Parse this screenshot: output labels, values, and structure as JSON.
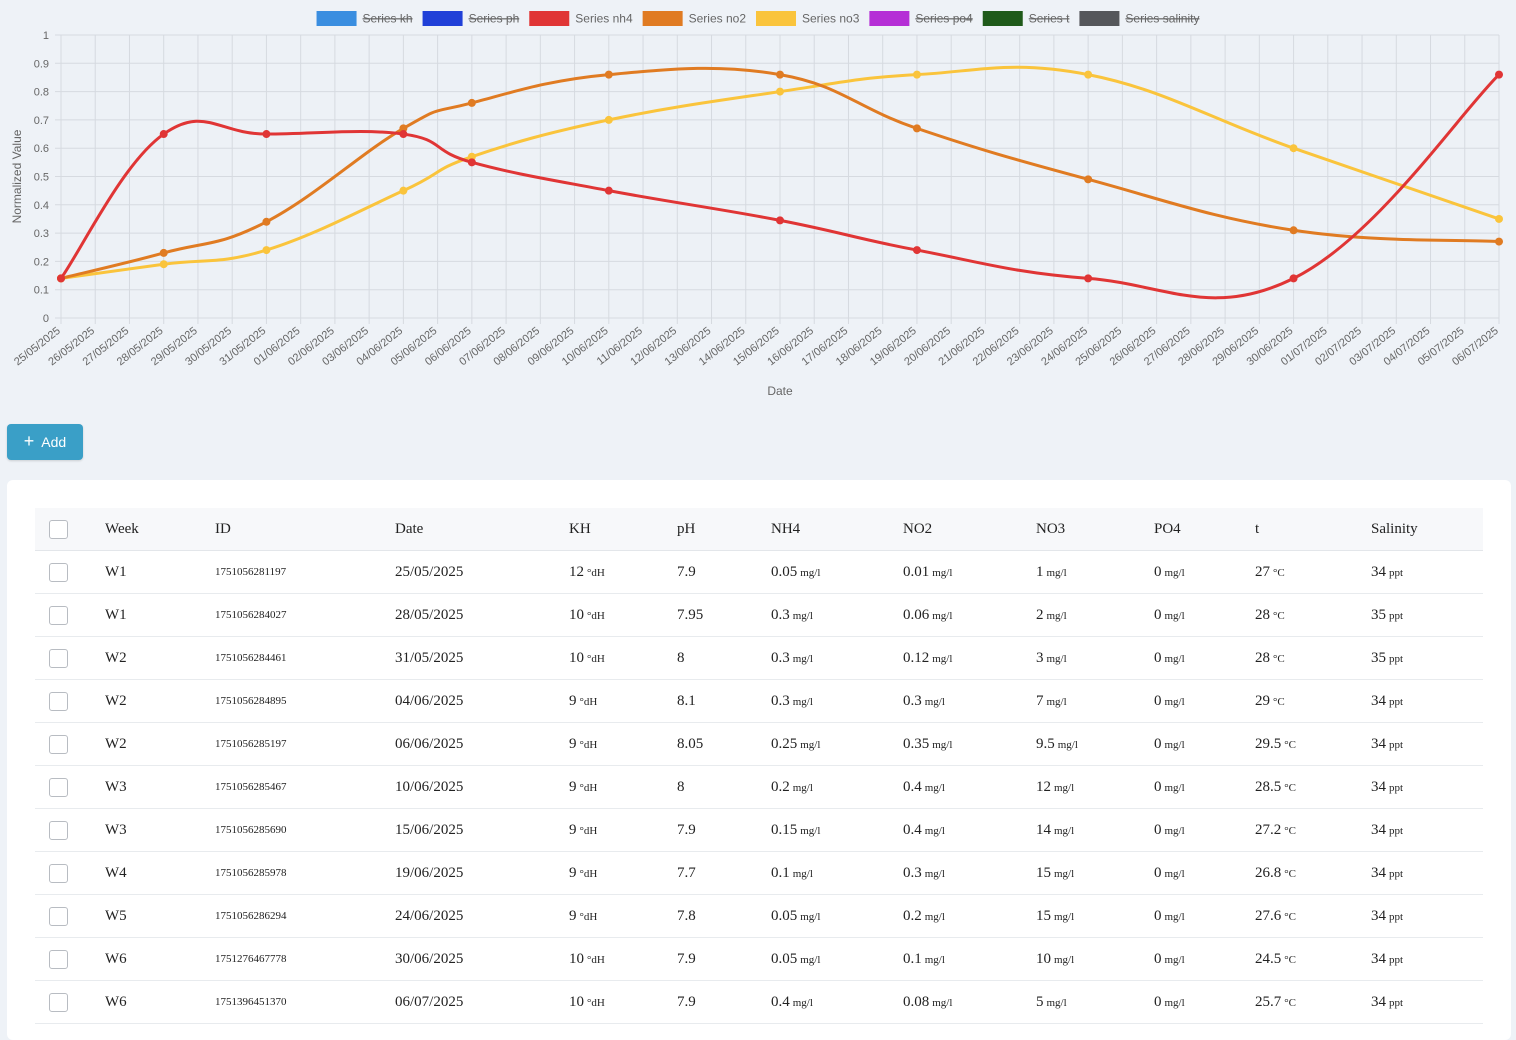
{
  "chart_data": {
    "type": "line",
    "xlabel": "Date",
    "ylabel": "Normalized Value",
    "ylim": [
      0,
      1
    ],
    "yticks": [
      "0",
      "0.1",
      "0.2",
      "0.3",
      "0.4",
      "0.5",
      "0.6",
      "0.7",
      "0.8",
      "0.9",
      "1"
    ],
    "x": [
      "25/05/2025",
      "26/05/2025",
      "27/05/2025",
      "28/05/2025",
      "29/05/2025",
      "30/05/2025",
      "31/05/2025",
      "01/06/2025",
      "02/06/2025",
      "03/06/2025",
      "04/06/2025",
      "05/06/2025",
      "06/06/2025",
      "07/06/2025",
      "08/06/2025",
      "09/06/2025",
      "10/06/2025",
      "11/06/2025",
      "12/06/2025",
      "13/06/2025",
      "14/06/2025",
      "15/06/2025",
      "16/06/2025",
      "17/06/2025",
      "18/06/2025",
      "19/06/2025",
      "20/06/2025",
      "21/06/2025",
      "22/06/2025",
      "23/06/2025",
      "24/06/2025",
      "25/06/2025",
      "26/06/2025",
      "27/06/2025",
      "28/06/2025",
      "29/06/2025",
      "30/06/2025",
      "01/07/2025",
      "02/07/2025",
      "03/07/2025",
      "04/07/2025",
      "05/07/2025",
      "06/07/2025"
    ],
    "legend_position": "top",
    "legend": [
      {
        "name": "Series kh",
        "color": "#3a8ee0",
        "hidden": true
      },
      {
        "name": "Series ph",
        "color": "#2040d8",
        "hidden": true
      },
      {
        "name": "Series nh4",
        "color": "#e03535",
        "hidden": false
      },
      {
        "name": "Series no2",
        "color": "#e07b22",
        "hidden": false
      },
      {
        "name": "Series no3",
        "color": "#fac43c",
        "hidden": false
      },
      {
        "name": "Series po4",
        "color": "#b52fd6",
        "hidden": true
      },
      {
        "name": "Series t",
        "color": "#1f5a1a",
        "hidden": true
      },
      {
        "name": "Series salinity",
        "color": "#55575b",
        "hidden": true
      }
    ],
    "series": [
      {
        "name": "Series nh4",
        "color": "#e03535",
        "points": [
          [
            "25/05/2025",
            0.14
          ],
          [
            "28/05/2025",
            0.65
          ],
          [
            "31/05/2025",
            0.65
          ],
          [
            "04/06/2025",
            0.65
          ],
          [
            "06/06/2025",
            0.55
          ],
          [
            "10/06/2025",
            0.45
          ],
          [
            "15/06/2025",
            0.345
          ],
          [
            "19/06/2025",
            0.24
          ],
          [
            "24/06/2025",
            0.14
          ],
          [
            "30/06/2025",
            0.14
          ],
          [
            "06/07/2025",
            0.86
          ]
        ]
      },
      {
        "name": "Series no2",
        "color": "#e07b22",
        "points": [
          [
            "25/05/2025",
            0.14
          ],
          [
            "28/05/2025",
            0.23
          ],
          [
            "31/05/2025",
            0.34
          ],
          [
            "04/06/2025",
            0.67
          ],
          [
            "06/06/2025",
            0.76
          ],
          [
            "10/06/2025",
            0.86
          ],
          [
            "15/06/2025",
            0.86
          ],
          [
            "19/06/2025",
            0.67
          ],
          [
            "24/06/2025",
            0.49
          ],
          [
            "30/06/2025",
            0.31
          ],
          [
            "06/07/2025",
            0.27
          ]
        ]
      },
      {
        "name": "Series no3",
        "color": "#fac43c",
        "points": [
          [
            "25/05/2025",
            0.14
          ],
          [
            "28/05/2025",
            0.19
          ],
          [
            "31/05/2025",
            0.24
          ],
          [
            "04/06/2025",
            0.45
          ],
          [
            "06/06/2025",
            0.57
          ],
          [
            "10/06/2025",
            0.7
          ],
          [
            "15/06/2025",
            0.8
          ],
          [
            "19/06/2025",
            0.86
          ],
          [
            "24/06/2025",
            0.86
          ],
          [
            "30/06/2025",
            0.6
          ],
          [
            "06/07/2025",
            0.35
          ]
        ]
      }
    ]
  },
  "toolbar": {
    "add_label": "Add"
  },
  "table": {
    "headers": [
      "Week",
      "ID",
      "Date",
      "KH",
      "pH",
      "NH4",
      "NO2",
      "NO3",
      "PO4",
      "t",
      "Salinity"
    ],
    "rows": [
      {
        "week": "W1",
        "id": "1751056281197",
        "date": "25/05/2025",
        "kh": "12",
        "kh_unit": "°dH",
        "ph": "7.9",
        "nh4": "0.05",
        "nh4_unit": "mg/l",
        "no2": "0.01",
        "no2_unit": "mg/l",
        "no3": "1",
        "no3_unit": "mg/l",
        "po4": "0",
        "po4_unit": "mg/l",
        "t": "27",
        "t_unit": "°C",
        "sal": "34",
        "sal_unit": "ppt"
      },
      {
        "week": "W1",
        "id": "1751056284027",
        "date": "28/05/2025",
        "kh": "10",
        "kh_unit": "°dH",
        "ph": "7.95",
        "nh4": "0.3",
        "nh4_unit": "mg/l",
        "no2": "0.06",
        "no2_unit": "mg/l",
        "no3": "2",
        "no3_unit": "mg/l",
        "po4": "0",
        "po4_unit": "mg/l",
        "t": "28",
        "t_unit": "°C",
        "sal": "35",
        "sal_unit": "ppt"
      },
      {
        "week": "W2",
        "id": "1751056284461",
        "date": "31/05/2025",
        "kh": "10",
        "kh_unit": "°dH",
        "ph": "8",
        "nh4": "0.3",
        "nh4_unit": "mg/l",
        "no2": "0.12",
        "no2_unit": "mg/l",
        "no3": "3",
        "no3_unit": "mg/l",
        "po4": "0",
        "po4_unit": "mg/l",
        "t": "28",
        "t_unit": "°C",
        "sal": "35",
        "sal_unit": "ppt"
      },
      {
        "week": "W2",
        "id": "1751056284895",
        "date": "04/06/2025",
        "kh": "9",
        "kh_unit": "°dH",
        "ph": "8.1",
        "nh4": "0.3",
        "nh4_unit": "mg/l",
        "no2": "0.3",
        "no2_unit": "mg/l",
        "no3": "7",
        "no3_unit": "mg/l",
        "po4": "0",
        "po4_unit": "mg/l",
        "t": "29",
        "t_unit": "°C",
        "sal": "34",
        "sal_unit": "ppt"
      },
      {
        "week": "W2",
        "id": "1751056285197",
        "date": "06/06/2025",
        "kh": "9",
        "kh_unit": "°dH",
        "ph": "8.05",
        "nh4": "0.25",
        "nh4_unit": "mg/l",
        "no2": "0.35",
        "no2_unit": "mg/l",
        "no3": "9.5",
        "no3_unit": "mg/l",
        "po4": "0",
        "po4_unit": "mg/l",
        "t": "29.5",
        "t_unit": "°C",
        "sal": "34",
        "sal_unit": "ppt"
      },
      {
        "week": "W3",
        "id": "1751056285467",
        "date": "10/06/2025",
        "kh": "9",
        "kh_unit": "°dH",
        "ph": "8",
        "nh4": "0.2",
        "nh4_unit": "mg/l",
        "no2": "0.4",
        "no2_unit": "mg/l",
        "no3": "12",
        "no3_unit": "mg/l",
        "po4": "0",
        "po4_unit": "mg/l",
        "t": "28.5",
        "t_unit": "°C",
        "sal": "34",
        "sal_unit": "ppt"
      },
      {
        "week": "W3",
        "id": "1751056285690",
        "date": "15/06/2025",
        "kh": "9",
        "kh_unit": "°dH",
        "ph": "7.9",
        "nh4": "0.15",
        "nh4_unit": "mg/l",
        "no2": "0.4",
        "no2_unit": "mg/l",
        "no3": "14",
        "no3_unit": "mg/l",
        "po4": "0",
        "po4_unit": "mg/l",
        "t": "27.2",
        "t_unit": "°C",
        "sal": "34",
        "sal_unit": "ppt"
      },
      {
        "week": "W4",
        "id": "1751056285978",
        "date": "19/06/2025",
        "kh": "9",
        "kh_unit": "°dH",
        "ph": "7.7",
        "nh4": "0.1",
        "nh4_unit": "mg/l",
        "no2": "0.3",
        "no2_unit": "mg/l",
        "no3": "15",
        "no3_unit": "mg/l",
        "po4": "0",
        "po4_unit": "mg/l",
        "t": "26.8",
        "t_unit": "°C",
        "sal": "34",
        "sal_unit": "ppt"
      },
      {
        "week": "W5",
        "id": "1751056286294",
        "date": "24/06/2025",
        "kh": "9",
        "kh_unit": "°dH",
        "ph": "7.8",
        "nh4": "0.05",
        "nh4_unit": "mg/l",
        "no2": "0.2",
        "no2_unit": "mg/l",
        "no3": "15",
        "no3_unit": "mg/l",
        "po4": "0",
        "po4_unit": "mg/l",
        "t": "27.6",
        "t_unit": "°C",
        "sal": "34",
        "sal_unit": "ppt"
      },
      {
        "week": "W6",
        "id": "1751276467778",
        "date": "30/06/2025",
        "kh": "10",
        "kh_unit": "°dH",
        "ph": "7.9",
        "nh4": "0.05",
        "nh4_unit": "mg/l",
        "no2": "0.1",
        "no2_unit": "mg/l",
        "no3": "10",
        "no3_unit": "mg/l",
        "po4": "0",
        "po4_unit": "mg/l",
        "t": "24.5",
        "t_unit": "°C",
        "sal": "34",
        "sal_unit": "ppt"
      },
      {
        "week": "W6",
        "id": "1751396451370",
        "date": "06/07/2025",
        "kh": "10",
        "kh_unit": "°dH",
        "ph": "7.9",
        "nh4": "0.4",
        "nh4_unit": "mg/l",
        "no2": "0.08",
        "no2_unit": "mg/l",
        "no3": "5",
        "no3_unit": "mg/l",
        "po4": "0",
        "po4_unit": "mg/l",
        "t": "25.7",
        "t_unit": "°C",
        "sal": "34",
        "sal_unit": "ppt"
      }
    ]
  }
}
